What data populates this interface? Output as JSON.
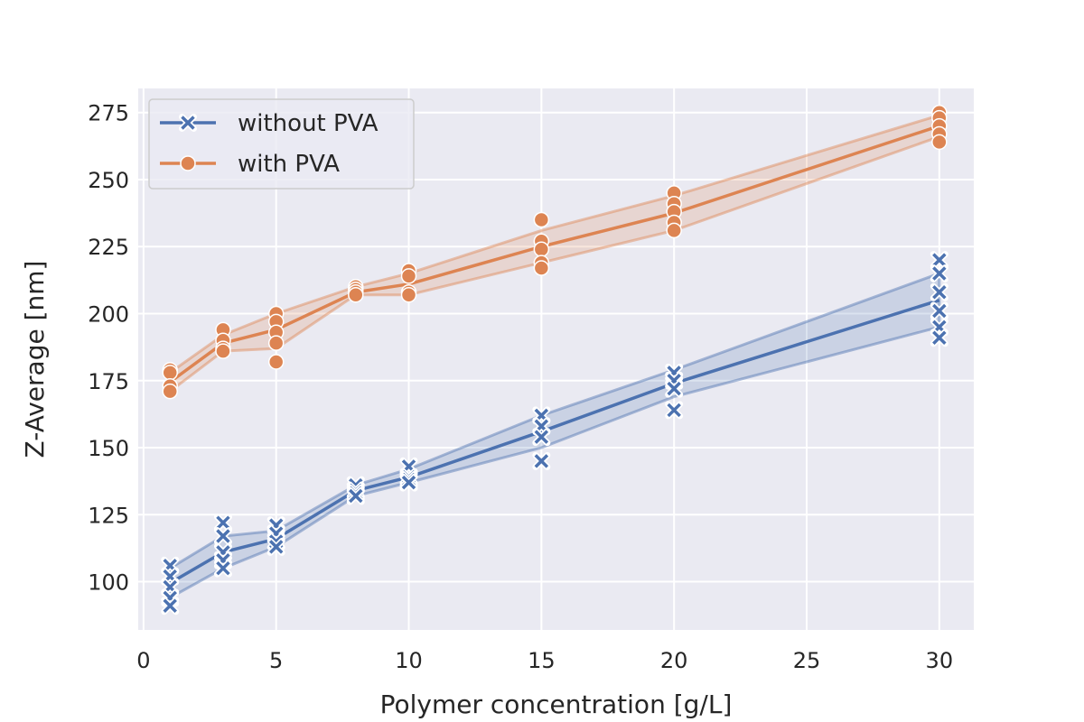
{
  "chart_data": {
    "type": "line",
    "title": "",
    "xlabel": "Polymer concentration [g/L]",
    "ylabel": "Z-Average [nm]",
    "xlim": [
      -0.2,
      31.3
    ],
    "ylim": [
      82,
      284
    ],
    "xticks": [
      0,
      5,
      10,
      15,
      20,
      25,
      30
    ],
    "yticks": [
      100,
      125,
      150,
      175,
      200,
      225,
      250,
      275
    ],
    "grid": true,
    "legend_position": "top-left",
    "series": [
      {
        "name": "without PVA",
        "color": "#4c72b0",
        "marker": "x",
        "x": [
          1,
          3,
          5,
          8,
          10,
          15,
          20,
          30
        ],
        "mean": [
          99.5,
          111,
          116,
          134,
          139,
          156,
          174,
          205
        ],
        "ci_low": [
          94,
          105,
          113,
          132,
          137,
          150,
          169,
          195
        ],
        "ci_high": [
          105,
          117,
          119,
          136,
          142,
          162,
          179,
          215
        ],
        "points": [
          [
            1,
            106
          ],
          [
            1,
            102
          ],
          [
            1,
            98
          ],
          [
            1,
            94
          ],
          [
            1,
            91
          ],
          [
            3,
            122
          ],
          [
            3,
            117
          ],
          [
            3,
            111
          ],
          [
            3,
            108
          ],
          [
            3,
            105
          ],
          [
            5,
            121
          ],
          [
            5,
            118
          ],
          [
            5,
            115
          ],
          [
            5,
            113
          ],
          [
            8,
            136
          ],
          [
            8,
            134
          ],
          [
            8,
            133
          ],
          [
            8,
            132
          ],
          [
            10,
            143
          ],
          [
            10,
            139
          ],
          [
            10,
            138
          ],
          [
            10,
            137
          ],
          [
            15,
            162
          ],
          [
            15,
            158
          ],
          [
            15,
            154
          ],
          [
            15,
            145
          ],
          [
            20,
            178
          ],
          [
            20,
            175
          ],
          [
            20,
            172
          ],
          [
            20,
            164
          ],
          [
            30,
            220
          ],
          [
            30,
            215
          ],
          [
            30,
            208
          ],
          [
            30,
            201
          ],
          [
            30,
            195
          ],
          [
            30,
            191
          ]
        ]
      },
      {
        "name": "with PVA",
        "color": "#dd8452",
        "marker": "o",
        "x": [
          1,
          3,
          5,
          8,
          10,
          15,
          20,
          30
        ],
        "mean": [
          174.5,
          189,
          194,
          208,
          211,
          225,
          237.5,
          270
        ],
        "ci_low": [
          171,
          186,
          187,
          207,
          207,
          219,
          231,
          266
        ],
        "ci_high": [
          178,
          192,
          200,
          210,
          215,
          231,
          244,
          274
        ],
        "points": [
          [
            1,
            179
          ],
          [
            1,
            178
          ],
          [
            1,
            173
          ],
          [
            1,
            171
          ],
          [
            3,
            194
          ],
          [
            3,
            190
          ],
          [
            3,
            187
          ],
          [
            3,
            186
          ],
          [
            5,
            200
          ],
          [
            5,
            197
          ],
          [
            5,
            193
          ],
          [
            5,
            189
          ],
          [
            5,
            182
          ],
          [
            8,
            210
          ],
          [
            8,
            209
          ],
          [
            8,
            208
          ],
          [
            8,
            207
          ],
          [
            10,
            216
          ],
          [
            10,
            214
          ],
          [
            10,
            208
          ],
          [
            10,
            207
          ],
          [
            15,
            235
          ],
          [
            15,
            227
          ],
          [
            15,
            224
          ],
          [
            15,
            219
          ],
          [
            15,
            217
          ],
          [
            20,
            245
          ],
          [
            20,
            241
          ],
          [
            20,
            238
          ],
          [
            20,
            234
          ],
          [
            20,
            231
          ],
          [
            30,
            275
          ],
          [
            30,
            273
          ],
          [
            30,
            270
          ],
          [
            30,
            267
          ],
          [
            30,
            264
          ]
        ]
      }
    ]
  }
}
